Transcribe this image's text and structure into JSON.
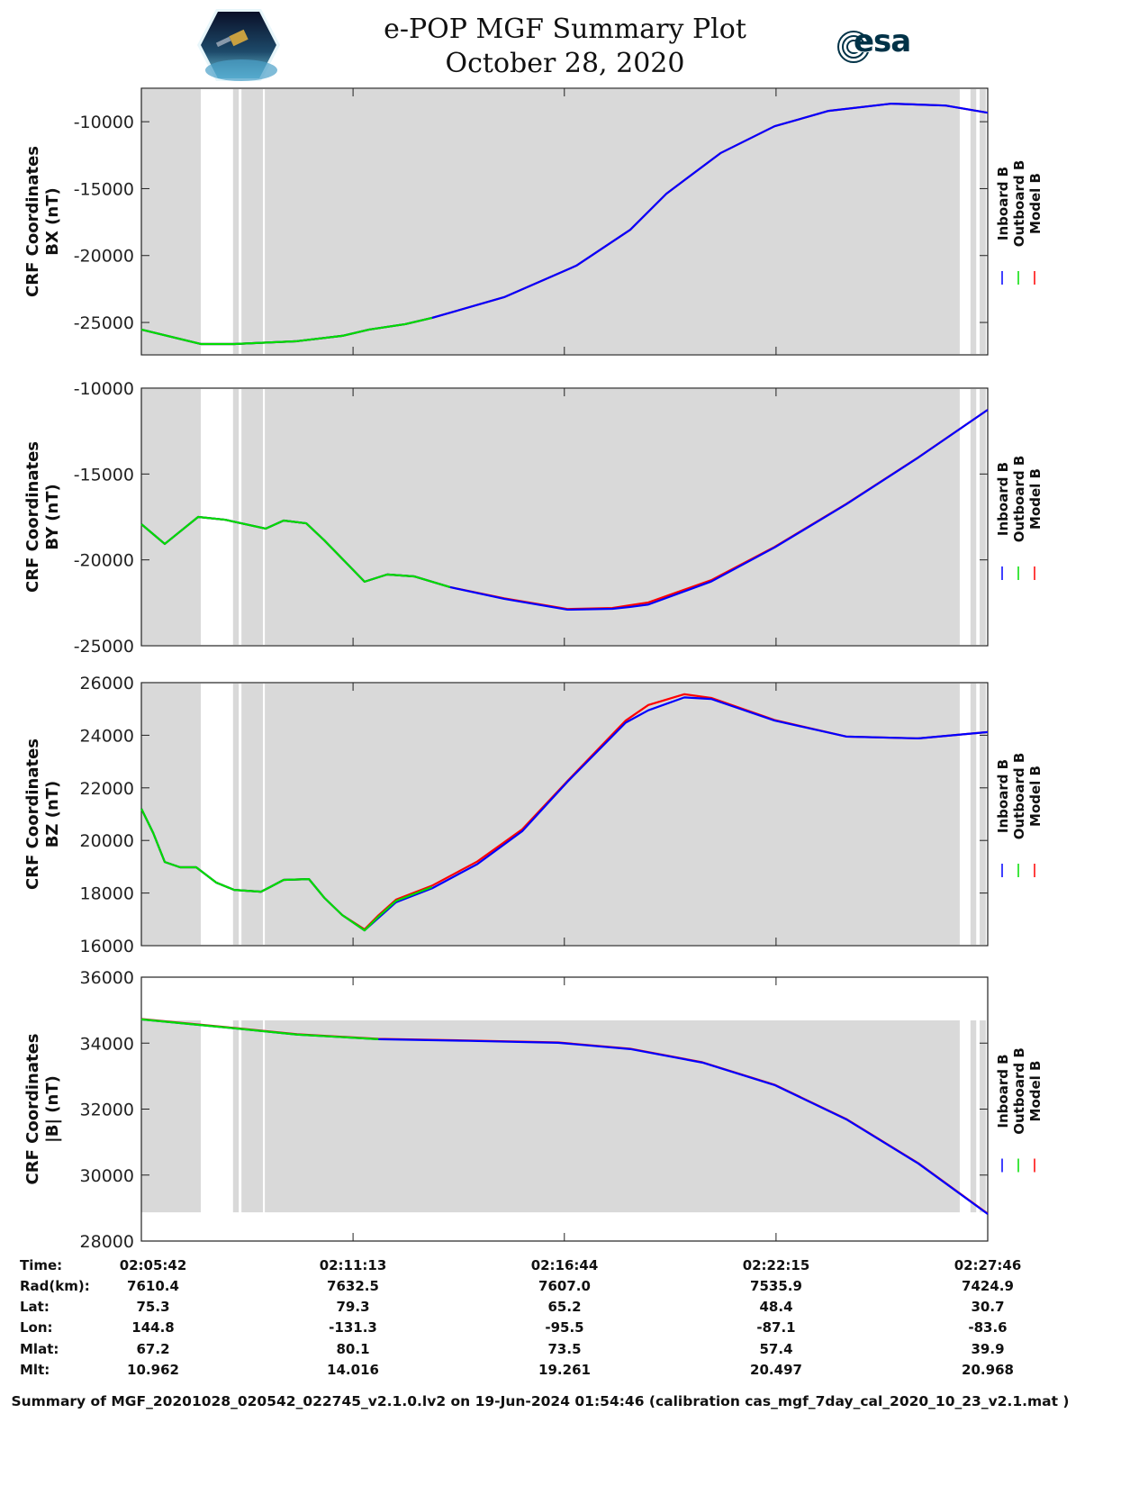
{
  "header": {
    "title": "e-POP MGF Summary Plot",
    "date": "October 28, 2020",
    "esa_logo": "esa",
    "cassiope_logo": "CASSIOPE"
  },
  "colors": {
    "inboard": "#0000ff",
    "outboard": "#00dd00",
    "model": "#ff0000",
    "band": "#d9d9d9"
  },
  "legend": [
    "Inboard B",
    "Outboard B",
    "Model B"
  ],
  "chart_data": {
    "type": "line",
    "x_unit": "minutes since 02:05:42",
    "xlim": [
      0,
      22.07
    ],
    "x_ticks": [
      0,
      5.52,
      11.03,
      16.55,
      22.07
    ],
    "x_tick_labels": [
      "02:05:42",
      "02:11:13",
      "02:16:44",
      "02:22:15",
      "02:27:46"
    ],
    "gray_bands": [
      [
        0,
        1.55
      ],
      [
        2.39,
        2.54
      ],
      [
        2.61,
        3.17
      ],
      [
        3.22,
        21.34
      ],
      [
        21.62,
        21.77
      ],
      [
        21.86,
        22.02
      ]
    ],
    "panels": [
      {
        "ylabel": [
          "CRF Coordinates",
          "BX (nT)"
        ],
        "ylim": [
          -27420,
          -7500
        ],
        "yticks": [
          -25000,
          -20000,
          -15000,
          -10000
        ],
        "ytick_labels": [
          "-25000",
          "-20000",
          "-15000",
          "-10000"
        ],
        "band_range": null,
        "x": [
          0,
          1.55,
          2.42,
          4.06,
          5.24,
          5.94,
          6.88,
          7.58,
          9.46,
          11.34,
          12.75,
          13.69,
          15.1,
          16.51,
          17.92,
          19.56,
          20.97,
          22.07
        ],
        "inboard": [
          -25530,
          -26610,
          -26610,
          -26400,
          -26000,
          -25530,
          -25130,
          -24660,
          -23110,
          -20760,
          -18070,
          -15380,
          -12350,
          -10340,
          -9190,
          -8650,
          -8790,
          -9330
        ],
        "model": [
          -25530,
          -26610,
          -26610,
          -26400,
          -26000,
          -25530,
          -25130,
          -24660,
          -23110,
          -20760,
          -18070,
          -15380,
          -12350,
          -10340,
          -9190,
          -8650,
          -8790,
          -9330
        ],
        "outboard": [
          -25530,
          -26610,
          -26610,
          -26400,
          -26000,
          -25530,
          -25130,
          -24660
        ]
      },
      {
        "ylabel": [
          "CRF Coordinates",
          "BY (nT)"
        ],
        "ylim": [
          -25000,
          -10000
        ],
        "yticks": [
          -25000,
          -20000,
          -15000,
          -10000
        ],
        "ytick_labels": [
          "-25000",
          "-20000",
          "-15000",
          "-10000"
        ],
        "band_range": null,
        "x": [
          0,
          0.61,
          1.48,
          2.18,
          3.24,
          3.71,
          4.3,
          4.77,
          5.82,
          6.41,
          7.11,
          8.05,
          9.46,
          11.11,
          12.28,
          12.75,
          13.22,
          14.86,
          16.51,
          18.38,
          20.26,
          22.07
        ],
        "inboard": [
          -17920,
          -19070,
          -17500,
          -17660,
          -18180,
          -17710,
          -17870,
          -18860,
          -21270,
          -20850,
          -20960,
          -21590,
          -22270,
          -22900,
          -22850,
          -22740,
          -22600,
          -21260,
          -19280,
          -16760,
          -14040,
          -11260
        ],
        "model": [
          -17920,
          -19070,
          -17500,
          -17660,
          -18180,
          -17710,
          -17870,
          -18860,
          -21270,
          -20850,
          -20960,
          -21590,
          -22240,
          -22860,
          -22800,
          -22640,
          -22480,
          -21180,
          -19250,
          -16740,
          -14030,
          -11260
        ],
        "outboard": [
          -17920,
          -19070,
          -17500,
          -17660,
          -18180,
          -17710,
          -17870,
          -18860,
          -21270,
          -20850,
          -20960,
          -21590
        ]
      },
      {
        "ylabel": [
          "CRF Coordinates",
          "BZ (nT)"
        ],
        "ylim": [
          16000,
          26000
        ],
        "yticks": [
          16000,
          18000,
          20000,
          22000,
          24000,
          26000
        ],
        "ytick_labels": [
          "16000",
          "18000",
          "20000",
          "22000",
          "24000",
          "26000"
        ],
        "band_range": null,
        "x": [
          0,
          0.31,
          0.61,
          1.01,
          1.43,
          1.95,
          2.42,
          3.12,
          3.36,
          3.71,
          4.37,
          4.77,
          5.24,
          5.82,
          6.18,
          6.64,
          7.58,
          8.76,
          9.93,
          11.11,
          12.63,
          13.22,
          14.16,
          14.86,
          16.51,
          18.38,
          20.26,
          22.07
        ],
        "inboard": [
          21205,
          20280,
          19180,
          18980,
          18980,
          18400,
          18120,
          18050,
          18230,
          18500,
          18530,
          17820,
          17160,
          16580,
          17050,
          17650,
          18180,
          19100,
          20350,
          22230,
          24480,
          24950,
          25440,
          25380,
          24560,
          23950,
          23880,
          24120
        ],
        "model": [
          21205,
          20280,
          19180,
          18980,
          18980,
          18400,
          18120,
          18050,
          18230,
          18500,
          18530,
          17820,
          17160,
          16620,
          17150,
          17750,
          18280,
          19200,
          20420,
          22260,
          24560,
          25150,
          25560,
          25420,
          24580,
          23950,
          23880,
          24120
        ],
        "outboard": [
          21205,
          20280,
          19180,
          18980,
          18980,
          18400,
          18120,
          18050,
          18230,
          18500,
          18530,
          17820,
          17160,
          16580,
          17100,
          17700,
          18230
        ]
      },
      {
        "ylabel": [
          "CRF Coordinates",
          "|B| (nT)"
        ],
        "ylim": [
          28000,
          36000
        ],
        "yticks": [
          28000,
          30000,
          32000,
          34000,
          36000
        ],
        "ytick_labels": [
          "28000",
          "30000",
          "32000",
          "34000",
          "36000"
        ],
        "band_range": [
          28870,
          34690
        ],
        "x": [
          0,
          2.42,
          4.06,
          6.18,
          8.52,
          10.87,
          12.75,
          14.63,
          16.51,
          18.38,
          20.26,
          22.07
        ],
        "inboard": [
          34720,
          34450,
          34260,
          34120,
          34070,
          34010,
          33820,
          33410,
          32730,
          31690,
          30350,
          28820
        ],
        "model": [
          34730,
          34460,
          34270,
          34130,
          34080,
          34020,
          33830,
          33420,
          32740,
          31700,
          30360,
          28830
        ],
        "outboard": [
          34720,
          34450,
          34260,
          34120
        ]
      }
    ]
  },
  "orbit_table": {
    "rows": [
      {
        "label": "Time:",
        "values": [
          "02:05:42",
          "02:11:13",
          "02:16:44",
          "02:22:15",
          "02:27:46"
        ]
      },
      {
        "label": "Rad(km):",
        "values": [
          "7610.4",
          "7632.5",
          "7607.0",
          "7535.9",
          "7424.9"
        ]
      },
      {
        "label": "Lat:",
        "values": [
          "75.3",
          "79.3",
          "65.2",
          "48.4",
          "30.7"
        ]
      },
      {
        "label": "Lon:",
        "values": [
          "144.8",
          "-131.3",
          "-95.5",
          "-87.1",
          "-83.6"
        ]
      },
      {
        "label": "Mlat:",
        "values": [
          "67.2",
          "80.1",
          "73.5",
          "57.4",
          "39.9"
        ]
      },
      {
        "label": "Mlt:",
        "values": [
          "10.962",
          "14.016",
          "19.261",
          "20.497",
          "20.968"
        ]
      }
    ]
  },
  "footer": "Summary of MGF_20201028_020542_022745_v2.1.0.lv2 on 19-Jun-2024 01:54:46 (calibration cas_mgf_7day_cal_2020_10_23_v2.1.mat )"
}
